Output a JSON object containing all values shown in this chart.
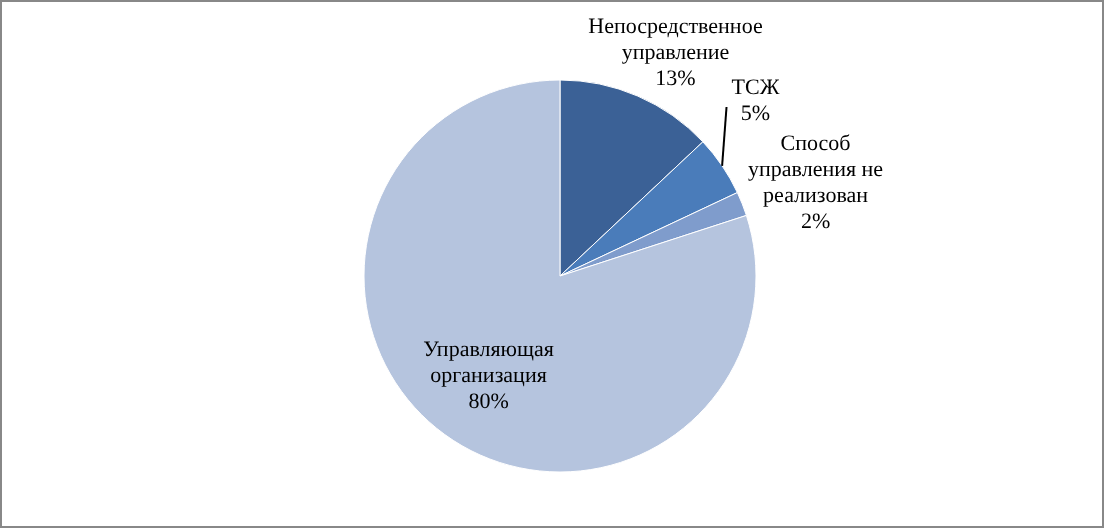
{
  "chart_data": {
    "type": "pie",
    "categories": [
      "Непосредственное управление",
      "ТСЖ",
      "Способ управления не реализован",
      "Управляющая организация"
    ],
    "values": [
      13,
      5,
      2,
      80
    ],
    "colors": [
      "#3b6196",
      "#4a7cba",
      "#7f9ccc",
      "#b5c4de"
    ],
    "value_labels": [
      "13%",
      "5%",
      "2%",
      "80%"
    ]
  }
}
